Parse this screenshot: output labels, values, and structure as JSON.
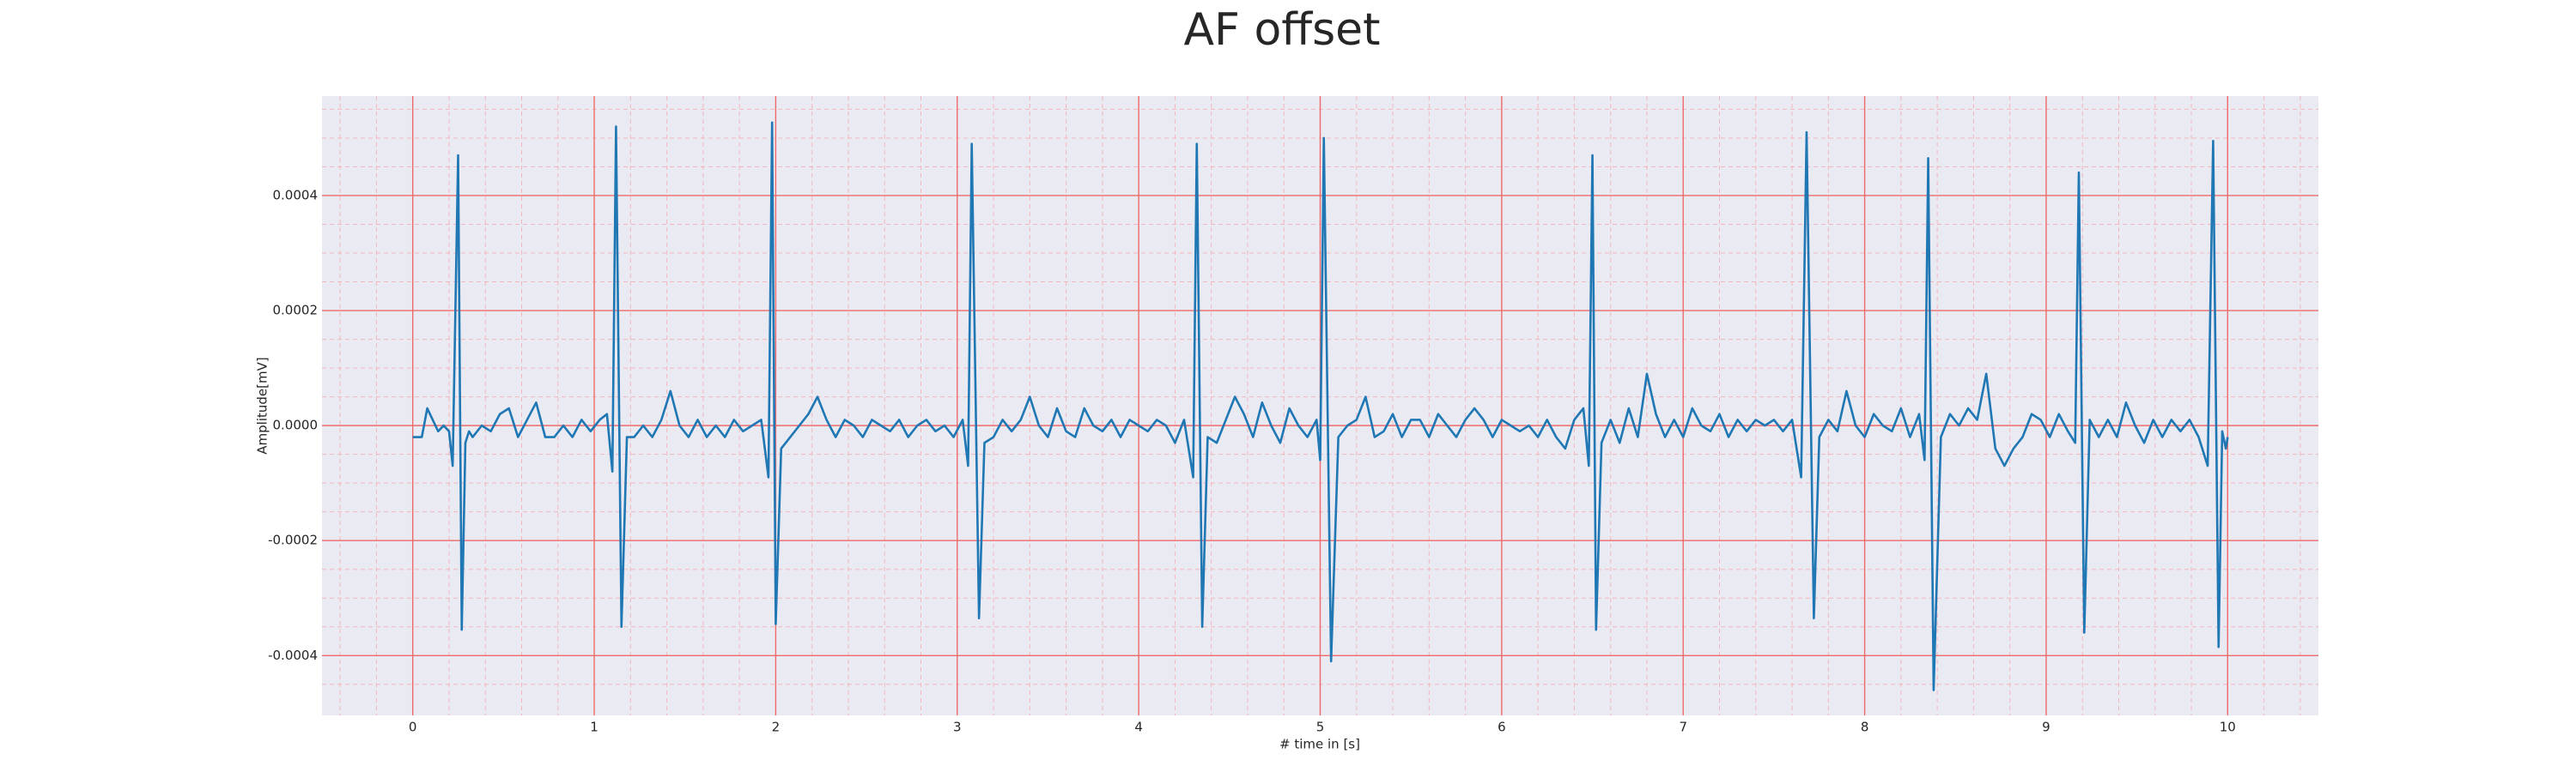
{
  "chart_data": {
    "type": "line",
    "title": "AF offset",
    "xlabel": "# time in [s]",
    "ylabel": "Amplitude[mV]",
    "color": "#1f77b4",
    "grid": true,
    "xlim": [
      -0.5,
      10.5
    ],
    "ylim": [
      -0.000504,
      0.000573
    ],
    "xticks": [
      0,
      1,
      2,
      3,
      4,
      5,
      6,
      7,
      8,
      9,
      10
    ],
    "yticks": [
      -0.0004,
      -0.0002,
      {
        "value": 0,
        "label": "0.0000"
      },
      0.0002,
      0.0004
    ],
    "xminorticks": [
      -0.4,
      -0.2,
      0.2,
      0.4,
      0.6,
      0.8,
      1.2,
      1.4,
      1.6,
      1.8,
      2.2,
      2.4,
      2.6,
      2.8,
      3.2,
      3.4,
      3.6,
      3.8,
      4.2,
      4.4,
      4.6,
      4.8,
      5.2,
      5.4,
      5.6,
      5.8,
      6.2,
      6.4,
      6.6,
      6.8,
      7.2,
      7.4,
      7.6,
      7.8,
      8.2,
      8.4,
      8.6,
      8.8,
      9.2,
      9.4,
      9.6,
      9.8,
      10.2,
      10.4
    ],
    "yminorticks": [
      -0.00045,
      -0.00035,
      -0.0003,
      -0.00025,
      -0.00015,
      -0.0001,
      -5e-05,
      5e-05,
      0.0001,
      0.00015,
      0.00025,
      0.0003,
      0.00035,
      0.00045,
      0.0005,
      0.00055
    ],
    "x": [
      0,
      0.05,
      0.08,
      0.11,
      0.14,
      0.17,
      0.2,
      0.22,
      0.25,
      0.27,
      0.29,
      0.31,
      0.33,
      0.38,
      0.43,
      0.48,
      0.53,
      0.58,
      0.63,
      0.68,
      0.73,
      0.78,
      0.83,
      0.88,
      0.93,
      0.98,
      1.03,
      1.07,
      1.1,
      1.12,
      1.15,
      1.18,
      1.22,
      1.27,
      1.32,
      1.37,
      1.42,
      1.47,
      1.52,
      1.57,
      1.62,
      1.67,
      1.72,
      1.77,
      1.82,
      1.87,
      1.92,
      1.96,
      1.98,
      2.0,
      2.03,
      2.08,
      2.13,
      2.18,
      2.23,
      2.28,
      2.33,
      2.38,
      2.43,
      2.48,
      2.53,
      2.58,
      2.63,
      2.68,
      2.73,
      2.78,
      2.83,
      2.88,
      2.93,
      2.98,
      3.03,
      3.06,
      3.08,
      3.12,
      3.15,
      3.2,
      3.25,
      3.3,
      3.35,
      3.4,
      3.45,
      3.5,
      3.55,
      3.6,
      3.65,
      3.7,
      3.75,
      3.8,
      3.85,
      3.9,
      3.95,
      4.0,
      4.05,
      4.1,
      4.15,
      4.2,
      4.25,
      4.3,
      4.32,
      4.35,
      4.38,
      4.43,
      4.48,
      4.53,
      4.58,
      4.63,
      4.68,
      4.73,
      4.78,
      4.83,
      4.88,
      4.93,
      4.98,
      5.0,
      5.02,
      5.06,
      5.1,
      5.15,
      5.2,
      5.25,
      5.3,
      5.35,
      5.4,
      5.45,
      5.5,
      5.55,
      5.6,
      5.65,
      5.7,
      5.75,
      5.8,
      5.85,
      5.9,
      5.95,
      6.0,
      6.05,
      6.1,
      6.15,
      6.2,
      6.25,
      6.3,
      6.35,
      6.4,
      6.45,
      6.48,
      6.5,
      6.52,
      6.55,
      6.6,
      6.65,
      6.7,
      6.75,
      6.8,
      6.85,
      6.9,
      6.95,
      7.0,
      7.05,
      7.1,
      7.15,
      7.2,
      7.25,
      7.3,
      7.35,
      7.4,
      7.45,
      7.5,
      7.55,
      7.6,
      7.65,
      7.68,
      7.72,
      7.75,
      7.8,
      7.85,
      7.9,
      7.95,
      8.0,
      8.05,
      8.1,
      8.15,
      8.2,
      8.25,
      8.3,
      8.33,
      8.35,
      8.38,
      8.42,
      8.47,
      8.52,
      8.57,
      8.62,
      8.67,
      8.72,
      8.77,
      8.82,
      8.87,
      8.92,
      8.97,
      9.02,
      9.07,
      9.12,
      9.16,
      9.18,
      9.21,
      9.24,
      9.29,
      9.34,
      9.39,
      9.44,
      9.49,
      9.54,
      9.59,
      9.64,
      9.69,
      9.74,
      9.79,
      9.84,
      9.89,
      9.92,
      9.95,
      9.97,
      9.99,
      10.0
    ],
    "values": [
      -2e-05,
      -2e-05,
      3e-05,
      1e-05,
      -1e-05,
      0,
      -1e-05,
      -7e-05,
      0.00047,
      -0.000355,
      -3e-05,
      -1e-05,
      -2e-05,
      0,
      -1e-05,
      2e-05,
      3e-05,
      -2e-05,
      1e-05,
      4e-05,
      -2e-05,
      -2e-05,
      0,
      -2e-05,
      1e-05,
      -1e-05,
      1e-05,
      2e-05,
      -8e-05,
      0.00052,
      -0.00035,
      -2e-05,
      -2e-05,
      0,
      -2e-05,
      1e-05,
      6e-05,
      0,
      -2e-05,
      1e-05,
      -2e-05,
      0,
      -2e-05,
      1e-05,
      -1e-05,
      0,
      1e-05,
      -9e-05,
      0.000527,
      -0.000345,
      -4e-05,
      -2e-05,
      0,
      2e-05,
      5e-05,
      1e-05,
      -2e-05,
      1e-05,
      0,
      -2e-05,
      1e-05,
      0,
      -1e-05,
      1e-05,
      -2e-05,
      0,
      1e-05,
      -1e-05,
      0,
      -2e-05,
      1e-05,
      -7e-05,
      0.00049,
      -0.000335,
      -3e-05,
      -2e-05,
      1e-05,
      -1e-05,
      1e-05,
      5e-05,
      0,
      -2e-05,
      3e-05,
      -1e-05,
      -2e-05,
      3e-05,
      0,
      -1e-05,
      1e-05,
      -2e-05,
      1e-05,
      0,
      -1e-05,
      1e-05,
      0,
      -3e-05,
      1e-05,
      -9e-05,
      0.00049,
      -0.00035,
      -2e-05,
      -3e-05,
      1e-05,
      5e-05,
      2e-05,
      -2e-05,
      4e-05,
      0,
      -3e-05,
      3e-05,
      0,
      -2e-05,
      1e-05,
      -6e-05,
      0.0005,
      -0.00041,
      -2e-05,
      0,
      1e-05,
      5e-05,
      -2e-05,
      -1e-05,
      2e-05,
      -2e-05,
      1e-05,
      1e-05,
      -2e-05,
      2e-05,
      0,
      -2e-05,
      1e-05,
      3e-05,
      1e-05,
      -2e-05,
      1e-05,
      0,
      -1e-05,
      0,
      -2e-05,
      1e-05,
      -2e-05,
      -4e-05,
      1e-05,
      3e-05,
      -7e-05,
      0.00047,
      -0.000355,
      -3e-05,
      1e-05,
      -3e-05,
      3e-05,
      -2e-05,
      9e-05,
      2e-05,
      -2e-05,
      1e-05,
      -2e-05,
      3e-05,
      0,
      -1e-05,
      2e-05,
      -2e-05,
      1e-05,
      -1e-05,
      1e-05,
      0,
      1e-05,
      -1e-05,
      1e-05,
      -9e-05,
      0.00051,
      -0.000335,
      -2e-05,
      1e-05,
      -1e-05,
      6e-05,
      0,
      -2e-05,
      2e-05,
      0,
      -1e-05,
      3e-05,
      -2e-05,
      2e-05,
      -6e-05,
      0.000465,
      -0.00046,
      -2e-05,
      2e-05,
      0,
      3e-05,
      1e-05,
      9e-05,
      -4e-05,
      -7e-05,
      -4e-05,
      -2e-05,
      2e-05,
      1e-05,
      -2e-05,
      2e-05,
      -1e-05,
      -3e-05,
      0.00044,
      -0.00036,
      1e-05,
      -2e-05,
      1e-05,
      -2e-05,
      4e-05,
      0,
      -3e-05,
      1e-05,
      -2e-05,
      1e-05,
      -1e-05,
      1e-05,
      -2e-05,
      -7e-05,
      0.000495,
      -0.000385,
      -1e-05,
      -4e-05,
      -2e-05
    ]
  }
}
